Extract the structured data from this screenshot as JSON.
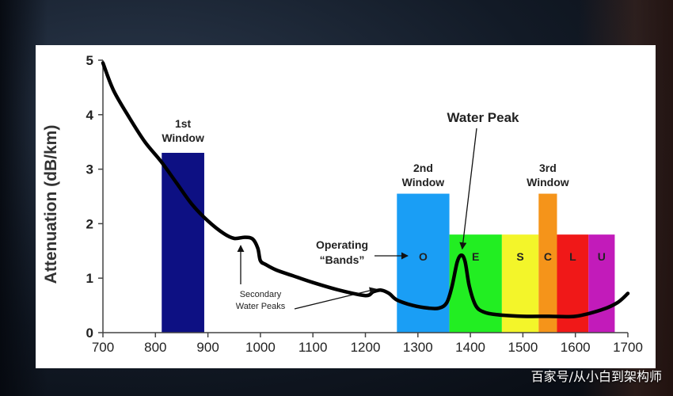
{
  "chart_data": {
    "type": "line",
    "ylabel": "Attenuation (dB/km)",
    "xlabel": "",
    "xlim": [
      700,
      1700
    ],
    "ylim": [
      0,
      5
    ],
    "xticks": [
      700,
      800,
      900,
      1000,
      1100,
      1200,
      1300,
      1400,
      1500,
      1600,
      1700
    ],
    "yticks": [
      0,
      1,
      2,
      3,
      4,
      5
    ],
    "series": [
      {
        "x": [
          700,
          720,
          750,
          780,
          810,
          840,
          870,
          900,
          930,
          950,
          970,
          985,
          995,
          1000,
          1010,
          1030,
          1060,
          1100,
          1150,
          1200,
          1215,
          1230,
          1245,
          1260,
          1290,
          1320,
          1340,
          1355,
          1365,
          1375,
          1383,
          1390,
          1398,
          1410,
          1425,
          1450,
          1500,
          1550,
          1600,
          1650,
          1680,
          1700
        ],
        "y": [
          4.95,
          4.45,
          3.95,
          3.5,
          3.15,
          2.75,
          2.35,
          2.05,
          1.82,
          1.73,
          1.75,
          1.72,
          1.55,
          1.32,
          1.25,
          1.15,
          1.05,
          0.92,
          0.78,
          0.68,
          0.75,
          0.78,
          0.72,
          0.6,
          0.5,
          0.45,
          0.45,
          0.55,
          0.85,
          1.3,
          1.42,
          1.3,
          0.85,
          0.5,
          0.38,
          0.33,
          0.3,
          0.3,
          0.3,
          0.42,
          0.55,
          0.72
        ]
      }
    ],
    "regions": [
      {
        "label": "",
        "x0": 812,
        "x1": 893,
        "y": 3.3,
        "color": "#0d1083"
      },
      {
        "label": "O",
        "x0": 1260,
        "x1": 1360,
        "y": 2.55,
        "color": "#1a9ef5"
      },
      {
        "label": "E",
        "x0": 1360,
        "x1": 1460,
        "y": 1.8,
        "color": "#22ee22"
      },
      {
        "label": "S",
        "x0": 1460,
        "x1": 1530,
        "y": 1.8,
        "color": "#f3f52a"
      },
      {
        "label": "C",
        "x0": 1530,
        "x1": 1565,
        "y": 2.55,
        "color": "#f5941a"
      },
      {
        "label": "L",
        "x0": 1565,
        "x1": 1625,
        "y": 1.8,
        "color": "#f01818"
      },
      {
        "label": "U",
        "x0": 1625,
        "x1": 1675,
        "y": 1.8,
        "color": "#c21bba"
      }
    ],
    "annotations": {
      "first_window": [
        "1st",
        "Window"
      ],
      "second_window": [
        "2nd",
        "Window"
      ],
      "third_window": [
        "3rd",
        "Window"
      ],
      "water_peak": "Water Peak",
      "operating_bands": [
        "Operating",
        "“Bands”"
      ],
      "secondary_peaks": [
        "Secondary",
        "Water Peaks"
      ]
    },
    "colors": {
      "curve": "#000000",
      "axis": "#444444"
    }
  },
  "watermark": "百家号/从小白到架构师"
}
